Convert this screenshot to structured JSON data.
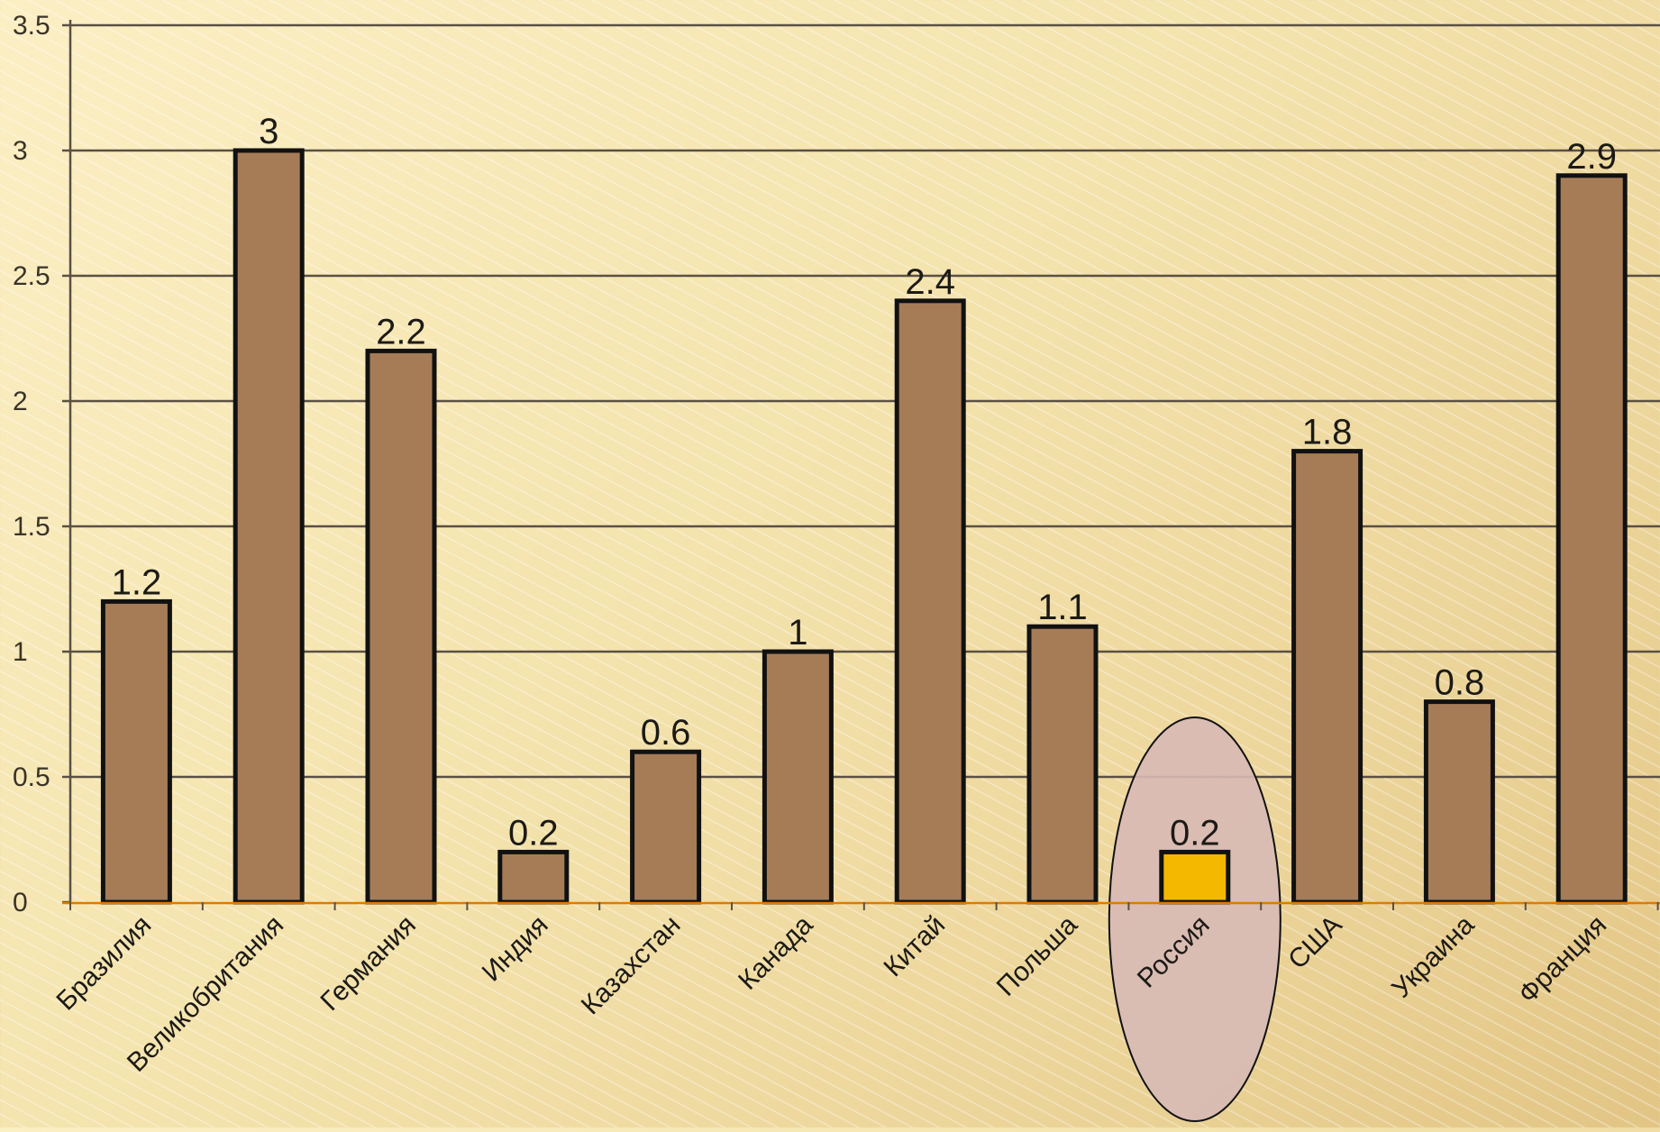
{
  "chart_data": {
    "type": "bar",
    "categories": [
      "Бразилия",
      "Великобритания",
      "Германия",
      "Индия",
      "Казахстан",
      "Канада",
      "Китай",
      "Польша",
      "Россия",
      "США",
      "Украина",
      "Франция"
    ],
    "values": [
      1.2,
      3,
      2.2,
      0.2,
      0.6,
      1,
      2.4,
      1.1,
      0.2,
      1.8,
      0.8,
      2.9
    ],
    "data_labels": [
      "1.2",
      "3",
      "2.2",
      "0.2",
      "0.6",
      "1",
      "2.4",
      "1.1",
      "0.2",
      "1.8",
      "0.8",
      "2.9"
    ],
    "y_ticks": [
      "0",
      "0.5",
      "1",
      "1.5",
      "2",
      "2.5",
      "3",
      "3.5"
    ],
    "ylim": [
      0,
      3.5
    ],
    "title": "",
    "xlabel": "",
    "ylabel": "",
    "grid": true,
    "legend": "none",
    "highlight_category": "Россия",
    "colors": {
      "bar": "#a67c57",
      "bar_highlight": "#f5b800",
      "highlight_ellipse": "#d7b9b5",
      "gridline": "#5a5043",
      "axis_zero": "#e07a00"
    }
  }
}
